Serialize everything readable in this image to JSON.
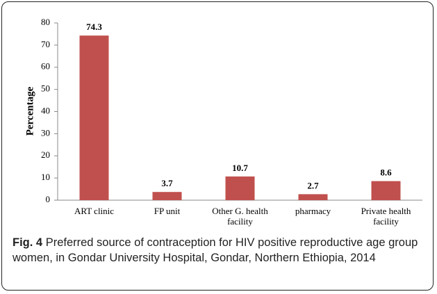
{
  "chart_data": {
    "type": "bar",
    "categories": [
      "ART clinic",
      "FP unit",
      "Other G. health facility",
      "pharmacy",
      "Private health facility"
    ],
    "values": [
      74.3,
      3.7,
      10.7,
      2.7,
      8.6
    ],
    "color": "#c0504d",
    "ylabel": "Percentage",
    "ylim": [
      0,
      80
    ],
    "yticks": [
      0,
      10,
      20,
      30,
      40,
      50,
      60,
      70,
      80
    ],
    "grid": false
  },
  "caption_label": "Fig. 4",
  "caption": "Preferred source of contraception for HIV positive reproductive age group women, in Gondar University Hospital, Gondar, Northern Ethiopia, 2014"
}
